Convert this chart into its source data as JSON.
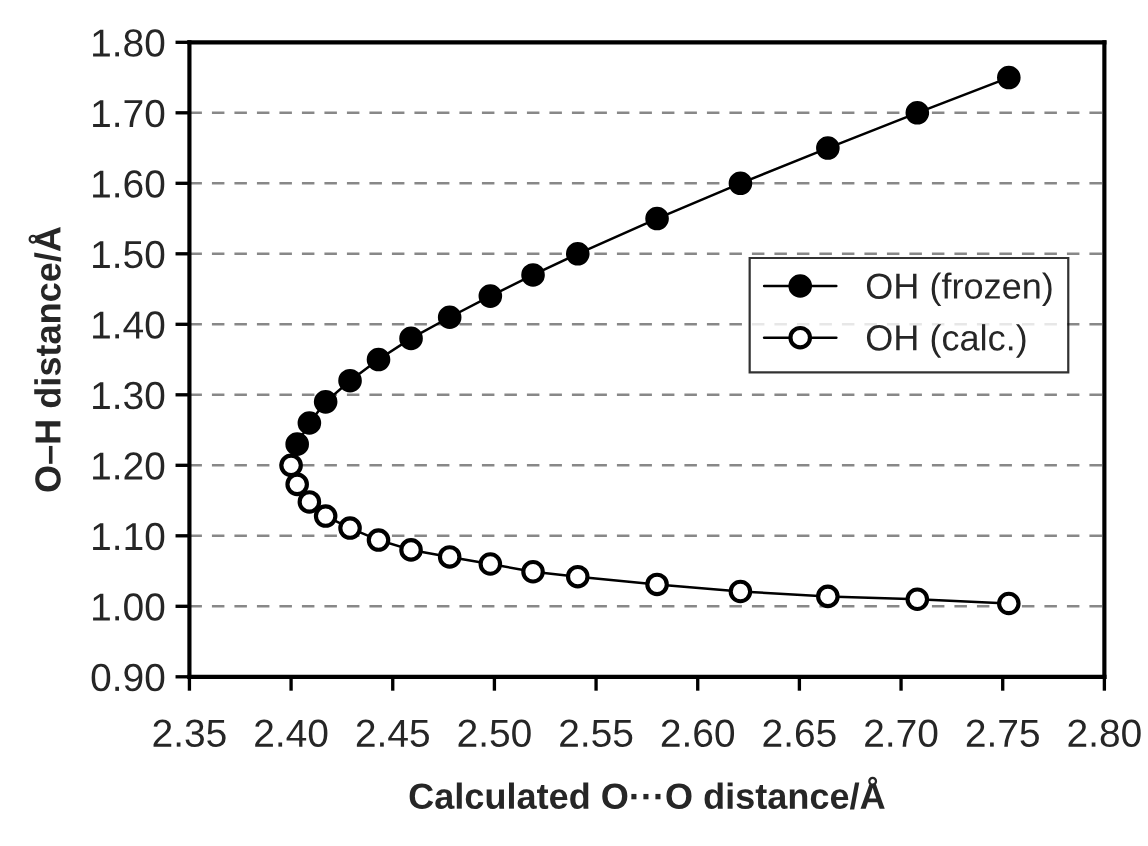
{
  "chart_data": {
    "type": "line",
    "xlabel": "Calculated O···O distance/Å",
    "ylabel": "O–H distance/Å",
    "xlim": [
      2.35,
      2.8
    ],
    "xticks": [
      {
        "value": 2.35,
        "label": "2.35"
      },
      {
        "value": 2.4,
        "label": "2.40"
      },
      {
        "value": 2.45,
        "label": "2.45"
      },
      {
        "value": 2.5,
        "label": "2.50"
      },
      {
        "value": 2.55,
        "label": "2.55"
      },
      {
        "value": 2.6,
        "label": "2.60"
      },
      {
        "value": 2.65,
        "label": "2.65"
      },
      {
        "value": 2.7,
        "label": "2.70"
      },
      {
        "value": 2.75,
        "label": "2.75"
      },
      {
        "value": 2.8,
        "label": "2.80"
      }
    ],
    "ylim": [
      0.9,
      1.8
    ],
    "yticks": [
      {
        "value": 0.9,
        "label": "0.90"
      },
      {
        "value": 1.0,
        "label": "1.00"
      },
      {
        "value": 1.1,
        "label": "1.10"
      },
      {
        "value": 1.2,
        "label": "1.20"
      },
      {
        "value": 1.3,
        "label": "1.30"
      },
      {
        "value": 1.4,
        "label": "1.40"
      },
      {
        "value": 1.5,
        "label": "1.50"
      },
      {
        "value": 1.6,
        "label": "1.60"
      },
      {
        "value": 1.7,
        "label": "1.70"
      },
      {
        "value": 1.8,
        "label": "1.80"
      }
    ],
    "grid": "y",
    "legend": "right",
    "marker": "circle",
    "line_style": "solid",
    "series": [
      {
        "name": "OH (frozen)",
        "color": "#000000",
        "x": [
          2.403,
          2.409,
          2.417,
          2.429,
          2.443,
          2.459,
          2.478,
          2.498,
          2.519,
          2.541,
          2.58,
          2.621,
          2.664,
          2.708,
          2.753
        ],
        "values": [
          1.23,
          1.26,
          1.29,
          1.32,
          1.35,
          1.38,
          1.41,
          1.44,
          1.47,
          1.5,
          1.55,
          1.6,
          1.65,
          1.7,
          1.75
        ]
      },
      {
        "name": "OH (calc.)",
        "color": "#ffffff",
        "x": [
          2.4,
          2.403,
          2.409,
          2.417,
          2.429,
          2.443,
          2.459,
          2.478,
          2.498,
          2.519,
          2.541,
          2.58,
          2.621,
          2.664,
          2.708,
          2.753
        ],
        "values": [
          1.2,
          1.173,
          1.148,
          1.128,
          1.111,
          1.094,
          1.08,
          1.07,
          1.06,
          1.049,
          1.042,
          1.031,
          1.021,
          1.014,
          1.01,
          1.004
        ]
      }
    ]
  }
}
